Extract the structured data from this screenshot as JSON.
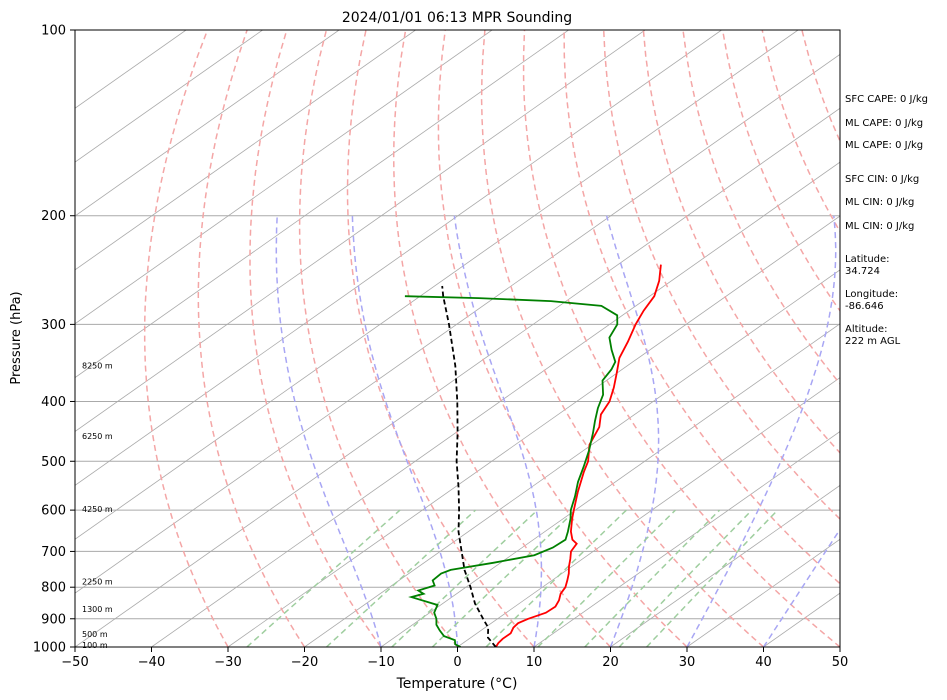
{
  "chart_data": {
    "type": "line",
    "title": "2024/01/01 06:13 MPR Sounding",
    "xlabel": "Temperature (°C)",
    "ylabel": "Pressure (hPa)",
    "xlim": [
      -50,
      50
    ],
    "ylim": [
      1000,
      100
    ],
    "y_scale": "log",
    "x_ticks": [
      "−50",
      "−40",
      "−30",
      "−20",
      "−10",
      "0",
      "10",
      "20",
      "30",
      "40",
      "50"
    ],
    "x_tick_values": [
      -50,
      -40,
      -30,
      -20,
      -10,
      0,
      10,
      20,
      30,
      40,
      50
    ],
    "y_ticks": [
      "100",
      "200",
      "300",
      "400",
      "500",
      "600",
      "700",
      "800",
      "900",
      "1000"
    ],
    "y_tick_values": [
      100,
      200,
      300,
      400,
      500,
      600,
      700,
      800,
      900,
      1000
    ],
    "skew_note": "isotherms skewed",
    "series": [
      {
        "color": "#ff0000",
        "points": [
          [
            1000,
            5.0
          ],
          [
            985,
            4.6
          ],
          [
            970,
            4.4
          ],
          [
            950,
            4.4
          ],
          [
            930,
            3.7
          ],
          [
            915,
            3.5
          ],
          [
            900,
            4.0
          ],
          [
            880,
            5.2
          ],
          [
            860,
            5.3
          ],
          [
            840,
            4.6
          ],
          [
            820,
            3.6
          ],
          [
            800,
            3.0
          ],
          [
            780,
            2.0
          ],
          [
            760,
            0.9
          ],
          [
            740,
            -0.4
          ],
          [
            720,
            -1.6
          ],
          [
            700,
            -2.9
          ],
          [
            680,
            -3.6
          ],
          [
            670,
            -4.9
          ],
          [
            650,
            -6.6
          ],
          [
            620,
            -8.8
          ],
          [
            600,
            -10.2
          ],
          [
            560,
            -13.1
          ],
          [
            520,
            -16.0
          ],
          [
            500,
            -17.4
          ],
          [
            470,
            -20.3
          ],
          [
            440,
            -22.3
          ],
          [
            420,
            -24.4
          ],
          [
            400,
            -25.7
          ],
          [
            380,
            -27.7
          ],
          [
            360,
            -30.0
          ],
          [
            340,
            -32.5
          ],
          [
            320,
            -34.4
          ],
          [
            300,
            -36.6
          ],
          [
            285,
            -38.1
          ],
          [
            270,
            -39.4
          ],
          [
            255,
            -41.6
          ],
          [
            240,
            -44.4
          ]
        ]
      },
      {
        "color": "#008000",
        "points": [
          [
            1000,
            0.4
          ],
          [
            990,
            -0.8
          ],
          [
            975,
            -1.6
          ],
          [
            960,
            -3.8
          ],
          [
            940,
            -5.4
          ],
          [
            920,
            -6.9
          ],
          [
            900,
            -8.0
          ],
          [
            880,
            -9.4
          ],
          [
            855,
            -10.4
          ],
          [
            830,
            -15.3
          ],
          [
            820,
            -14.3
          ],
          [
            810,
            -15.6
          ],
          [
            795,
            -14.4
          ],
          [
            780,
            -15.6
          ],
          [
            760,
            -15.8
          ],
          [
            750,
            -15.2
          ],
          [
            730,
            -10.9
          ],
          [
            710,
            -7.0
          ],
          [
            690,
            -6.0
          ],
          [
            670,
            -5.8
          ],
          [
            650,
            -7.0
          ],
          [
            620,
            -9.0
          ],
          [
            600,
            -10.6
          ],
          [
            570,
            -12.6
          ],
          [
            540,
            -14.9
          ],
          [
            510,
            -17.0
          ],
          [
            480,
            -19.3
          ],
          [
            450,
            -22.0
          ],
          [
            430,
            -24.0
          ],
          [
            410,
            -26.0
          ],
          [
            390,
            -27.8
          ],
          [
            370,
            -30.5
          ],
          [
            355,
            -31.4
          ],
          [
            345,
            -32.3
          ],
          [
            330,
            -35.0
          ],
          [
            315,
            -37.6
          ],
          [
            300,
            -39.0
          ],
          [
            290,
            -40.7
          ],
          [
            280,
            -44.5
          ],
          [
            275,
            -52.0
          ],
          [
            272,
            -62.0
          ],
          [
            270,
            -72.0
          ]
        ]
      },
      {
        "color": "#000000",
        "dashed": true,
        "points": [
          [
            1000,
            5.0
          ],
          [
            965,
            2.2
          ],
          [
            930,
            0.4
          ],
          [
            900,
            -1.9
          ],
          [
            850,
            -5.8
          ],
          [
            800,
            -9.4
          ],
          [
            750,
            -13.4
          ],
          [
            700,
            -17.2
          ],
          [
            650,
            -21.3
          ],
          [
            600,
            -25.2
          ],
          [
            550,
            -29.6
          ],
          [
            500,
            -34.6
          ],
          [
            450,
            -39.7
          ],
          [
            400,
            -45.6
          ],
          [
            350,
            -52.5
          ],
          [
            300,
            -61.0
          ],
          [
            270,
            -67.0
          ],
          [
            260,
            -69.0
          ]
        ]
      }
    ],
    "height_labels": [
      {
        "text": "8250 m",
        "p": 350
      },
      {
        "text": "6250 m",
        "p": 455
      },
      {
        "text": "4250 m",
        "p": 597
      },
      {
        "text": "2250 m",
        "p": 783
      },
      {
        "text": "1300 m",
        "p": 867
      },
      {
        "text": "500 m",
        "p": 953
      },
      {
        "text": "100 m",
        "p": 993
      }
    ],
    "dry_adiabat_thetas_c": [
      -30,
      -20,
      -10,
      0,
      10,
      20,
      30,
      40,
      50,
      60,
      70,
      80,
      90,
      100,
      110,
      120,
      130,
      140,
      150,
      160
    ],
    "moist_adiabat_starts_c": [
      -10,
      0,
      10,
      20,
      30,
      40,
      50
    ],
    "mixing_ratio_values": [
      0.4,
      1,
      2,
      3,
      5,
      8,
      12,
      16,
      20
    ],
    "colors": {
      "temperature": "#ff0000",
      "dewpoint": "#008000",
      "parcel": "#000000",
      "isotherm": "#aaaaaa",
      "dry_adiabat": "#f4a6a6",
      "moist_adiabat": "#a8a6f4",
      "mixing_ratio": "#9fce9f"
    }
  },
  "info_panel": [
    "SFC CAPE: 0 J/kg",
    "ML CAPE: 0 J/kg",
    "ML CAPE: 0 J/kg",
    "SFC CIN: 0 J/kg",
    "ML CIN: 0 J/kg",
    "ML CIN: 0 J/kg",
    "Latitude:",
    "34.724",
    "Longitude:",
    "-86.646",
    "Altitude:",
    "222 m AGL"
  ]
}
